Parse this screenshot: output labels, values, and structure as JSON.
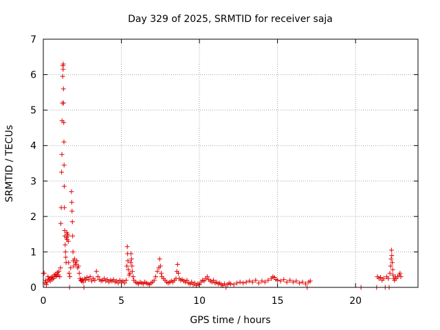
{
  "chart_data": {
    "type": "scatter",
    "title": "Day 329 of 2025, SRMTID for receiver saja",
    "xlabel": "GPS time / hours",
    "ylabel": "SRMTID / TECUs",
    "xlim": [
      0,
      24
    ],
    "ylim": [
      0,
      7
    ],
    "xticks": [
      0,
      5,
      10,
      15,
      20
    ],
    "yticks": [
      0,
      1,
      2,
      3,
      4,
      5,
      6,
      7
    ],
    "grid": true,
    "marker": "+",
    "color": "#e00000",
    "series": [
      {
        "name": "SRMTID",
        "points": [
          [
            0.0,
            0.4
          ],
          [
            0.05,
            0.4
          ],
          [
            0.1,
            0.12
          ],
          [
            0.15,
            0.2
          ],
          [
            0.2,
            0.08
          ],
          [
            0.25,
            0.15
          ],
          [
            0.3,
            0.3
          ],
          [
            0.35,
            0.22
          ],
          [
            0.4,
            0.25
          ],
          [
            0.45,
            0.18
          ],
          [
            0.5,
            0.28
          ],
          [
            0.55,
            0.22
          ],
          [
            0.6,
            0.3
          ],
          [
            0.65,
            0.25
          ],
          [
            0.7,
            0.35
          ],
          [
            0.75,
            0.3
          ],
          [
            0.8,
            0.38
          ],
          [
            0.85,
            0.32
          ],
          [
            0.9,
            0.42
          ],
          [
            0.95,
            0.35
          ],
          [
            1.0,
            0.45
          ],
          [
            1.05,
            0.3
          ],
          [
            1.1,
            0.55
          ],
          [
            1.12,
            1.8
          ],
          [
            1.15,
            2.25
          ],
          [
            1.17,
            3.25
          ],
          [
            1.19,
            3.75
          ],
          [
            1.2,
            4.7
          ],
          [
            1.22,
            5.2
          ],
          [
            1.24,
            5.95
          ],
          [
            1.25,
            6.25
          ],
          [
            1.27,
            6.15
          ],
          [
            1.28,
            6.3
          ],
          [
            1.29,
            5.6
          ],
          [
            1.3,
            5.2
          ],
          [
            1.31,
            4.65
          ],
          [
            1.32,
            4.1
          ],
          [
            1.33,
            3.45
          ],
          [
            1.34,
            2.85
          ],
          [
            1.35,
            2.25
          ],
          [
            1.37,
            1.6
          ],
          [
            1.38,
            1.45
          ],
          [
            1.4,
            1.2
          ],
          [
            1.42,
            1.0
          ],
          [
            1.44,
            0.85
          ],
          [
            1.46,
            0.7
          ],
          [
            1.48,
            1.4
          ],
          [
            1.5,
            1.55
          ],
          [
            1.52,
            1.35
          ],
          [
            1.55,
            1.5
          ],
          [
            1.58,
            1.45
          ],
          [
            1.6,
            1.3
          ],
          [
            1.62,
            0.7
          ],
          [
            1.65,
            0.4
          ],
          [
            1.68,
            0.0
          ],
          [
            1.7,
            0.3
          ],
          [
            1.75,
            0.55
          ],
          [
            1.8,
            2.7
          ],
          [
            1.82,
            2.4
          ],
          [
            1.84,
            2.15
          ],
          [
            1.86,
            1.85
          ],
          [
            1.88,
            1.45
          ],
          [
            1.9,
            1.0
          ],
          [
            1.92,
            0.75
          ],
          [
            1.95,
            0.6
          ],
          [
            2.0,
            0.8
          ],
          [
            2.05,
            0.7
          ],
          [
            2.1,
            0.65
          ],
          [
            2.15,
            0.75
          ],
          [
            2.2,
            0.55
          ],
          [
            2.25,
            0.6
          ],
          [
            2.3,
            0.4
          ],
          [
            2.35,
            0.25
          ],
          [
            2.4,
            0.2
          ],
          [
            2.45,
            0.18
          ],
          [
            2.5,
            0.22
          ],
          [
            2.55,
            0.15
          ],
          [
            2.6,
            0.0
          ],
          [
            2.65,
            0.25
          ],
          [
            2.7,
            0.2
          ],
          [
            2.8,
            0.28
          ],
          [
            2.9,
            0.22
          ],
          [
            3.0,
            0.3
          ],
          [
            3.1,
            0.18
          ],
          [
            3.2,
            0.25
          ],
          [
            3.3,
            0.2
          ],
          [
            3.4,
            0.45
          ],
          [
            3.5,
            0.3
          ],
          [
            3.6,
            0.22
          ],
          [
            3.7,
            0.18
          ],
          [
            3.8,
            0.2
          ],
          [
            3.9,
            0.25
          ],
          [
            4.0,
            0.18
          ],
          [
            4.1,
            0.22
          ],
          [
            4.2,
            0.15
          ],
          [
            4.3,
            0.2
          ],
          [
            4.4,
            0.18
          ],
          [
            4.5,
            0.22
          ],
          [
            4.6,
            0.15
          ],
          [
            4.7,
            0.18
          ],
          [
            4.8,
            0.12
          ],
          [
            4.9,
            0.2
          ],
          [
            5.0,
            0.15
          ],
          [
            5.1,
            0.18
          ],
          [
            5.2,
            0.12
          ],
          [
            5.3,
            0.2
          ],
          [
            5.35,
            0.6
          ],
          [
            5.38,
            1.15
          ],
          [
            5.4,
            0.95
          ],
          [
            5.42,
            0.75
          ],
          [
            5.45,
            0.5
          ],
          [
            5.5,
            0.35
          ],
          [
            5.55,
            0.4
          ],
          [
            5.6,
            0.7
          ],
          [
            5.62,
            0.95
          ],
          [
            5.65,
            0.8
          ],
          [
            5.68,
            0.6
          ],
          [
            5.7,
            0.45
          ],
          [
            5.75,
            0.3
          ],
          [
            5.8,
            0.2
          ],
          [
            5.9,
            0.15
          ],
          [
            6.0,
            0.12
          ],
          [
            6.1,
            0.1
          ],
          [
            6.2,
            0.15
          ],
          [
            6.3,
            0.12
          ],
          [
            6.4,
            0.1
          ],
          [
            6.5,
            0.15
          ],
          [
            6.6,
            0.12
          ],
          [
            6.7,
            0.1
          ],
          [
            6.8,
            0.08
          ],
          [
            6.9,
            0.12
          ],
          [
            7.0,
            0.15
          ],
          [
            7.1,
            0.2
          ],
          [
            7.2,
            0.3
          ],
          [
            7.3,
            0.45
          ],
          [
            7.4,
            0.55
          ],
          [
            7.45,
            0.8
          ],
          [
            7.5,
            0.6
          ],
          [
            7.55,
            0.4
          ],
          [
            7.6,
            0.3
          ],
          [
            7.7,
            0.25
          ],
          [
            7.8,
            0.2
          ],
          [
            7.9,
            0.15
          ],
          [
            8.0,
            0.12
          ],
          [
            8.1,
            0.15
          ],
          [
            8.2,
            0.18
          ],
          [
            8.3,
            0.15
          ],
          [
            8.4,
            0.2
          ],
          [
            8.5,
            0.25
          ],
          [
            8.55,
            0.45
          ],
          [
            8.6,
            0.65
          ],
          [
            8.65,
            0.4
          ],
          [
            8.7,
            0.25
          ],
          [
            8.8,
            0.2
          ],
          [
            8.9,
            0.22
          ],
          [
            9.0,
            0.18
          ],
          [
            9.1,
            0.15
          ],
          [
            9.2,
            0.2
          ],
          [
            9.3,
            0.12
          ],
          [
            9.4,
            0.1
          ],
          [
            9.5,
            0.15
          ],
          [
            9.6,
            0.08
          ],
          [
            9.7,
            0.12
          ],
          [
            9.8,
            0.05
          ],
          [
            9.9,
            0.1
          ],
          [
            10.0,
            0.08
          ],
          [
            10.1,
            0.15
          ],
          [
            10.2,
            0.2
          ],
          [
            10.3,
            0.18
          ],
          [
            10.4,
            0.25
          ],
          [
            10.5,
            0.3
          ],
          [
            10.6,
            0.22
          ],
          [
            10.7,
            0.18
          ],
          [
            10.8,
            0.15
          ],
          [
            10.9,
            0.2
          ],
          [
            11.0,
            0.12
          ],
          [
            11.1,
            0.15
          ],
          [
            11.2,
            0.1
          ],
          [
            11.3,
            0.12
          ],
          [
            11.4,
            0.08
          ],
          [
            11.5,
            0.05
          ],
          [
            11.6,
            0.1
          ],
          [
            11.7,
            0.0
          ],
          [
            11.8,
            0.08
          ],
          [
            11.9,
            0.12
          ],
          [
            12.0,
            0.1
          ],
          [
            12.2,
            0.08
          ],
          [
            12.4,
            0.12
          ],
          [
            12.6,
            0.15
          ],
          [
            12.8,
            0.12
          ],
          [
            13.0,
            0.15
          ],
          [
            13.2,
            0.18
          ],
          [
            13.4,
            0.15
          ],
          [
            13.6,
            0.2
          ],
          [
            13.8,
            0.12
          ],
          [
            14.0,
            0.18
          ],
          [
            14.2,
            0.15
          ],
          [
            14.4,
            0.2
          ],
          [
            14.6,
            0.25
          ],
          [
            14.7,
            0.3
          ],
          [
            14.8,
            0.28
          ],
          [
            14.9,
            0.22
          ],
          [
            15.0,
            0.2
          ],
          [
            15.2,
            0.18
          ],
          [
            15.4,
            0.22
          ],
          [
            15.6,
            0.15
          ],
          [
            15.8,
            0.2
          ],
          [
            16.0,
            0.15
          ],
          [
            16.2,
            0.18
          ],
          [
            16.4,
            0.12
          ],
          [
            16.6,
            0.15
          ],
          [
            16.8,
            0.1
          ],
          [
            16.9,
            0.0
          ],
          [
            17.0,
            0.15
          ],
          [
            17.1,
            0.18
          ],
          [
            20.35,
            0.0
          ],
          [
            21.35,
            0.0
          ],
          [
            21.4,
            0.3
          ],
          [
            21.5,
            0.25
          ],
          [
            21.6,
            0.28
          ],
          [
            21.7,
            0.2
          ],
          [
            21.8,
            0.25
          ],
          [
            21.9,
            0.0
          ],
          [
            22.0,
            0.3
          ],
          [
            22.1,
            0.25
          ],
          [
            22.15,
            0.0
          ],
          [
            22.2,
            0.4
          ],
          [
            22.25,
            0.6
          ],
          [
            22.28,
            0.8
          ],
          [
            22.3,
            1.05
          ],
          [
            22.32,
            0.9
          ],
          [
            22.35,
            0.7
          ],
          [
            22.38,
            0.5
          ],
          [
            22.4,
            0.35
          ],
          [
            22.45,
            0.25
          ],
          [
            22.5,
            0.2
          ],
          [
            22.55,
            0.3
          ],
          [
            22.6,
            0.25
          ],
          [
            22.7,
            0.3
          ],
          [
            22.8,
            0.35
          ],
          [
            22.85,
            0.4
          ],
          [
            22.9,
            0.3
          ]
        ]
      }
    ]
  }
}
